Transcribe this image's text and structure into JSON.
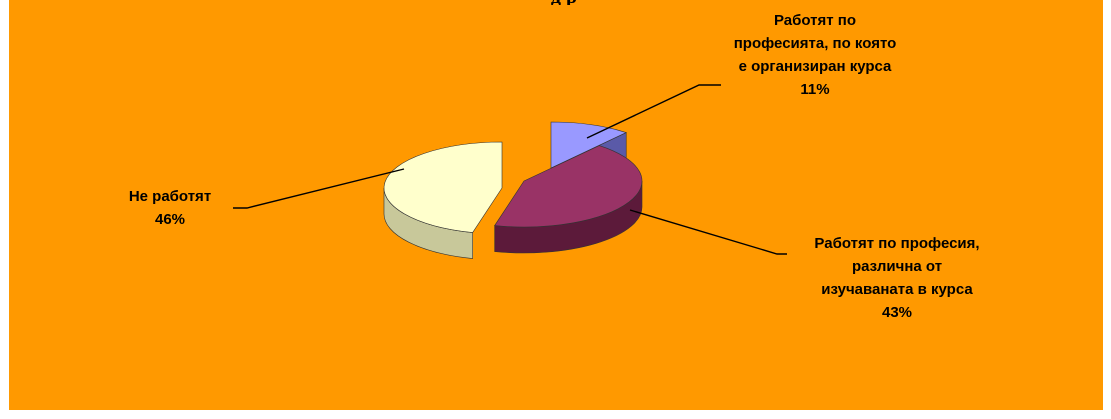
{
  "chart_data": {
    "type": "pie",
    "title_visible_fragment": "д р",
    "labels": [
      "Работят по професията, по която е организиран курса",
      "Работят по професия, различна от изучаваната в курса",
      "Не работят"
    ],
    "values": [
      11,
      43,
      46
    ],
    "value_labels": [
      "11%",
      "43%",
      "46%"
    ],
    "label_lines": [
      [
        "Работят по",
        "професията, по която",
        "е организиран курса",
        "11%"
      ],
      [
        "Работят по професия,",
        "различна от",
        "изучаваната в курса",
        "43%"
      ],
      [
        "Не работят",
        "46%"
      ]
    ],
    "colors": [
      "#9999ff",
      "#993366",
      "#ffffcc"
    ],
    "side_colors": [
      "#5a5aa8",
      "#5c1a3a",
      "#c8c89a"
    ],
    "background": "#ff9900",
    "style": "3d-exploded-pie",
    "legend": "none"
  }
}
